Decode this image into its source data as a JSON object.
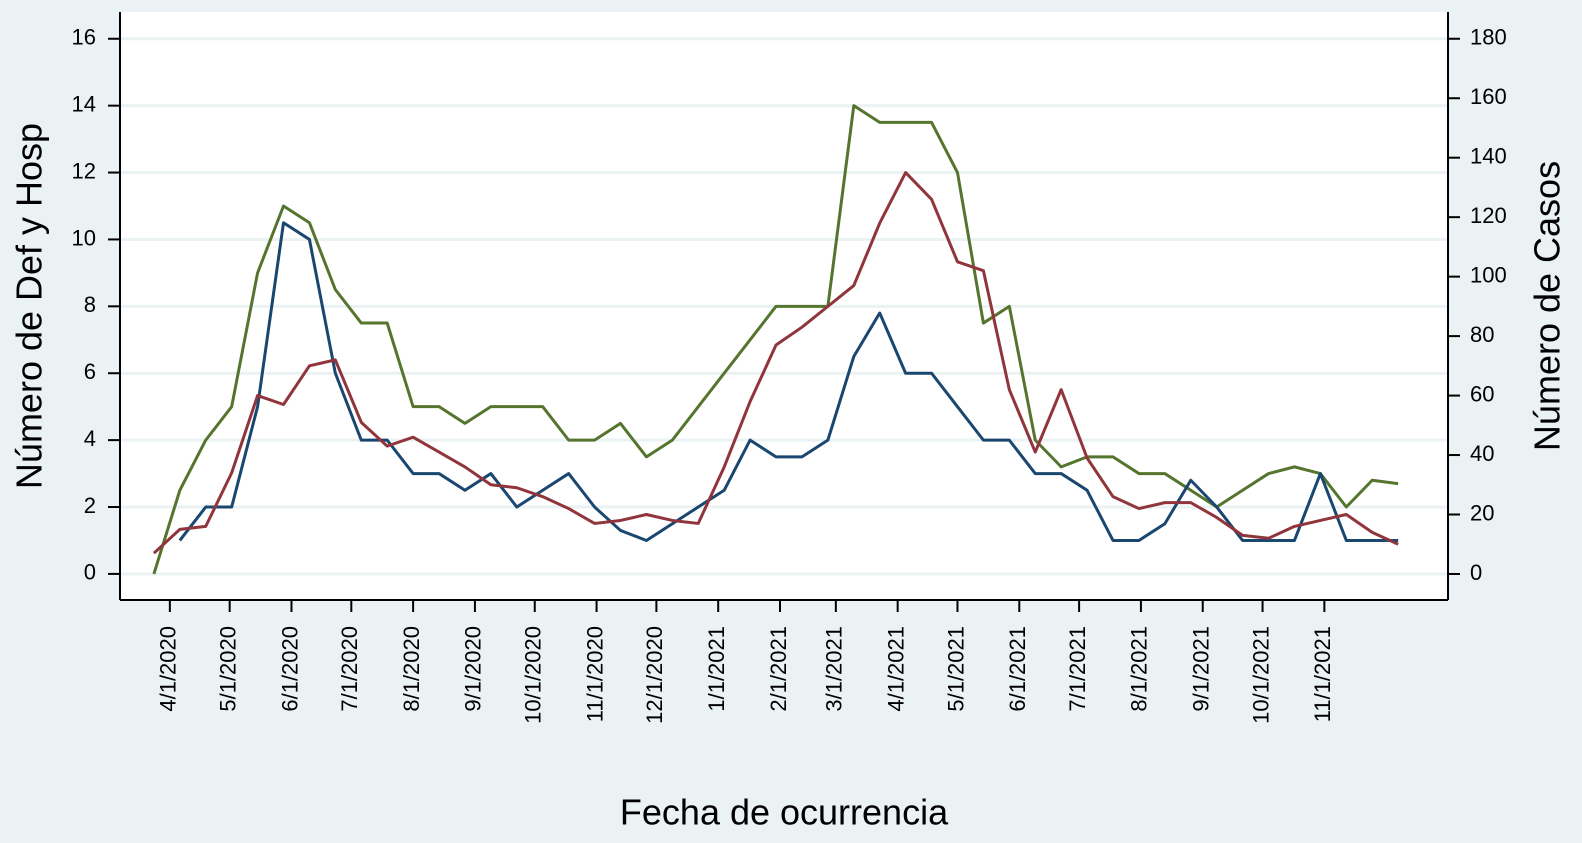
{
  "chart_data": {
    "type": "line",
    "x_label": "Fecha de ocurrencia",
    "y_label": "Número de Def y Hosp",
    "y2_label": "Número de Casos",
    "x": [
      "2020-03-24",
      "2020-04-06",
      "2020-04-19",
      "2020-05-02",
      "2020-05-15",
      "2020-05-28",
      "2020-06-10",
      "2020-06-23",
      "2020-07-06",
      "2020-07-19",
      "2020-08-01",
      "2020-08-14",
      "2020-08-27",
      "2020-09-09",
      "2020-09-22",
      "2020-10-05",
      "2020-10-18",
      "2020-10-31",
      "2020-11-13",
      "2020-11-26",
      "2020-12-09",
      "2020-12-22",
      "2021-01-04",
      "2021-01-17",
      "2021-01-30",
      "2021-02-12",
      "2021-02-25",
      "2021-03-10",
      "2021-03-23",
      "2021-04-05",
      "2021-04-18",
      "2021-05-01",
      "2021-05-14",
      "2021-05-27",
      "2021-06-09",
      "2021-06-22",
      "2021-07-05",
      "2021-07-18",
      "2021-07-31",
      "2021-08-13",
      "2021-08-26",
      "2021-09-08",
      "2021-09-21",
      "2021-10-04",
      "2021-10-17",
      "2021-10-30",
      "2021-11-12",
      "2021-11-25",
      "2021-12-08"
    ],
    "xlim": [
      "2020-03-07",
      "2022-01-02"
    ],
    "xticks": [
      {
        "value": "2020-04-01",
        "label": "4/1/2020"
      },
      {
        "value": "2020-05-01",
        "label": "5/1/2020"
      },
      {
        "value": "2020-06-01",
        "label": "6/1/2020"
      },
      {
        "value": "2020-07-01",
        "label": "7/1/2020"
      },
      {
        "value": "2020-08-01",
        "label": "8/1/2020"
      },
      {
        "value": "2020-09-01",
        "label": "9/1/2020"
      },
      {
        "value": "2020-10-01",
        "label": "10/1/2020"
      },
      {
        "value": "2020-11-01",
        "label": "11/1/2020"
      },
      {
        "value": "2020-12-01",
        "label": "12/1/2020"
      },
      {
        "value": "2021-01-01",
        "label": "1/1/2021"
      },
      {
        "value": "2021-02-01",
        "label": "2/1/2021"
      },
      {
        "value": "2021-03-01",
        "label": "3/1/2021"
      },
      {
        "value": "2021-04-01",
        "label": "4/1/2021"
      },
      {
        "value": "2021-05-01",
        "label": "5/1/2021"
      },
      {
        "value": "2021-06-01",
        "label": "6/1/2021"
      },
      {
        "value": "2021-07-01",
        "label": "7/1/2021"
      },
      {
        "value": "2021-08-01",
        "label": "8/1/2021"
      },
      {
        "value": "2021-09-01",
        "label": "9/1/2021"
      },
      {
        "value": "2021-10-01",
        "label": "10/1/2021"
      },
      {
        "value": "2021-11-01",
        "label": "11/1/2021"
      }
    ],
    "ylim": [
      -0.78,
      16.8
    ],
    "yticks": [
      0,
      2,
      4,
      6,
      8,
      10,
      12,
      14,
      16
    ],
    "y2lim": [
      -8.75,
      189
    ],
    "y2ticks": [
      0,
      20,
      40,
      60,
      80,
      100,
      120,
      140,
      160,
      180
    ],
    "grid": true,
    "series": [
      {
        "color": "#55752f",
        "values": [
          0,
          2.5,
          4,
          5,
          9,
          11,
          10.5,
          8.5,
          7.5,
          7.5,
          5,
          5,
          4.5,
          5,
          5,
          5,
          4,
          4,
          4.5,
          3.5,
          4,
          5,
          6,
          7,
          8,
          8,
          8,
          14,
          13.5,
          13.5,
          13.5,
          12,
          7.5,
          8,
          4,
          3.2,
          3.5,
          3.5,
          3,
          3,
          2.5,
          2,
          2.5,
          3,
          3.2,
          3,
          2,
          2.8,
          2.7
        ]
      },
      {
        "color": "#1a476f",
        "values": [
          null,
          1,
          2,
          2,
          5,
          10.5,
          10,
          6,
          4,
          4,
          3,
          3,
          2.5,
          3,
          2,
          2.5,
          3,
          2,
          1.3,
          1,
          1.5,
          2,
          2.5,
          4,
          3.5,
          3.5,
          4,
          6.5,
          7.8,
          6,
          6,
          5,
          4,
          4,
          3,
          3,
          2.5,
          1,
          1,
          1.5,
          2.8,
          2,
          1,
          1,
          1,
          3,
          1,
          1,
          1
        ]
      },
      {
        "color": "#90353b",
        "axis": "y2",
        "values": [
          7,
          15,
          16,
          34,
          60,
          57,
          70,
          72,
          51,
          43,
          46,
          41,
          36,
          30,
          29,
          26,
          22,
          17,
          18,
          20,
          18,
          17,
          36,
          58,
          77,
          83,
          90,
          97,
          118,
          135,
          126,
          105,
          102,
          62,
          41,
          62,
          39,
          26,
          22,
          24,
          24,
          19,
          13,
          12,
          16,
          18,
          20,
          14,
          10
        ]
      }
    ]
  }
}
